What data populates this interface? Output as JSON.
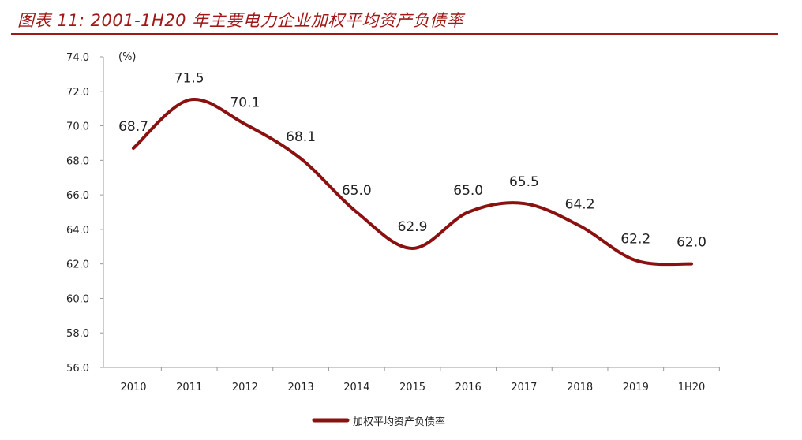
{
  "title": "图表 11: 2001-1H20 年主要电力企业加权平均资产负债率",
  "colors": {
    "line": "#8b1010",
    "title": "#a01818"
  },
  "chart_data": {
    "type": "line",
    "title": "图表 11: 2001-1H20 年主要电力企业加权平均资产负债率",
    "ylabel": "(%)",
    "xlabel": "",
    "categories": [
      "2010",
      "2011",
      "2012",
      "2013",
      "2014",
      "2015",
      "2016",
      "2017",
      "2018",
      "2019",
      "1H20"
    ],
    "series": [
      {
        "name": "加权平均资产负债率",
        "values": [
          68.7,
          71.5,
          70.1,
          68.1,
          65.0,
          62.9,
          65.0,
          65.5,
          64.2,
          62.2,
          62.0
        ]
      }
    ],
    "ylim": [
      56,
      74
    ],
    "yticks": [
      "56.0",
      "58.0",
      "60.0",
      "62.0",
      "64.0",
      "66.0",
      "68.0",
      "70.0",
      "72.0",
      "74.0"
    ],
    "grid": false,
    "legend": "bottom"
  }
}
